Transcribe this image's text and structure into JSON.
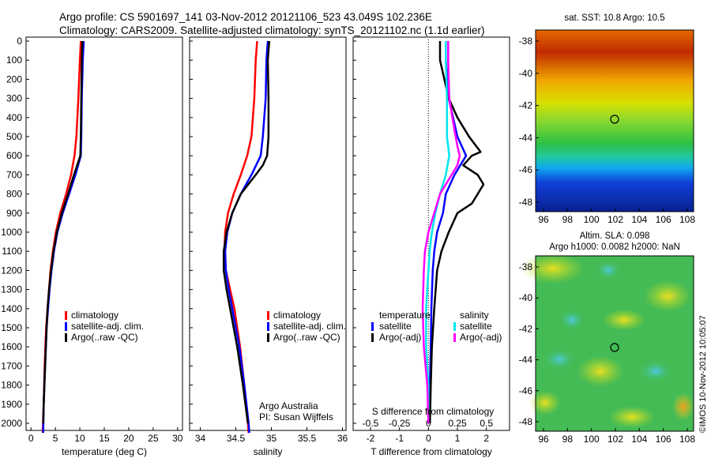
{
  "header": {
    "line1": "Argo profile: CS 5901697_141 03-Nov-2012 20121106_523 43.049S 102.236E",
    "line2": "Climatology: CARS2009. Satellite-adjusted climatology: synTS_20121102.nc (1.1d earlier)"
  },
  "depth_ticks": [
    "0",
    "100",
    "200",
    "300",
    "400",
    "500",
    "600",
    "700",
    "800",
    "900",
    "1000",
    "1100",
    "1200",
    "1300",
    "1400",
    "1500",
    "1600",
    "1700",
    "1800",
    "1900",
    "2000"
  ],
  "colors": {
    "climatology": "#ff0000",
    "satellite": "#0000ff",
    "argo": "#000000",
    "sat_salinity": "#00e5ee",
    "argo_adj_salinity": "#ff00ff"
  },
  "temp_panel": {
    "xlabel": "temperature (deg C)",
    "xticks": [
      "0",
      "5",
      "10",
      "15",
      "20",
      "25",
      "30"
    ],
    "legend": [
      "climatology",
      "satellite-adj. clim.",
      "Argo(..raw -QC)"
    ]
  },
  "sal_panel": {
    "xlabel": "salinity",
    "xticks": [
      "34",
      "34.5",
      "35",
      "35.5",
      "36"
    ],
    "legend": [
      "climatology",
      "satellite-adj. clim.",
      "Argo(..raw -QC)"
    ],
    "note1": "Argo Australia",
    "note2": "PI: Susan Wijffels"
  },
  "diff_panel": {
    "xlabel": "T difference from climatology",
    "top_label": "S difference from climatology",
    "xticks_bottom": [
      "-2",
      "-1",
      "0",
      "1",
      "2"
    ],
    "xticks_top": [
      "-0.5",
      "-0.25",
      "0",
      "0.25",
      "0.5"
    ],
    "legend_temperature_title": "temperature",
    "legend_salinity_title": "salinity",
    "legend_temperature": [
      "satellite",
      "Argo(-adj)"
    ],
    "legend_salinity": [
      "satellite",
      "Argo(-adj)"
    ]
  },
  "sst_map": {
    "title": "sat. SST: 10.8  Argo: 10.5",
    "yticks": [
      "-38",
      "-40",
      "-42",
      "-44",
      "-46",
      "-48"
    ],
    "xticks": [
      "96",
      "98",
      "100",
      "102",
      "104",
      "106",
      "108"
    ]
  },
  "sla_map": {
    "title1": "Altim. SLA: 0.098",
    "title2": "Argo h1000: 0.0082 h2000: NaN",
    "yticks": [
      "-38",
      "-40",
      "-42",
      "-44",
      "-46",
      "-48"
    ],
    "xticks": [
      "96",
      "98",
      "100",
      "102",
      "104",
      "106",
      "108"
    ]
  },
  "side_stamp": "©IMOS 10-Nov-2012 10:05:07",
  "chart_data": [
    {
      "type": "line",
      "xlabel": "temperature (deg C)",
      "ylabel": "",
      "xlim": [
        -1,
        31
      ],
      "ylim": [
        2050,
        0
      ],
      "series": [
        {
          "name": "climatology",
          "depth": [
            0,
            100,
            300,
            500,
            600,
            700,
            800,
            900,
            1000,
            1100,
            1200,
            1300,
            1400,
            1500,
            1700,
            1900,
            2050
          ],
          "values": [
            10.2,
            10.0,
            9.7,
            9.3,
            8.9,
            8.2,
            7.2,
            6.0,
            5.1,
            4.5,
            4.0,
            3.7,
            3.4,
            3.1,
            2.8,
            2.6,
            2.4
          ]
        },
        {
          "name": "satellite-adj. clim.",
          "depth": [
            0,
            100,
            300,
            500,
            600,
            700,
            800,
            900,
            1000,
            1100,
            1200,
            1300,
            1400,
            1500,
            1700,
            1900,
            2050
          ],
          "values": [
            10.8,
            10.6,
            10.4,
            10.3,
            10.2,
            9.1,
            7.8,
            6.5,
            5.4,
            4.7,
            4.2,
            3.8,
            3.5,
            3.2,
            2.9,
            2.6,
            2.5
          ]
        },
        {
          "name": "Argo(..raw -QC)",
          "depth": [
            0,
            100,
            300,
            500,
            600,
            700,
            800,
            900,
            1000,
            1100,
            1200,
            1300,
            1400,
            1500,
            1700,
            1900,
            2000
          ],
          "values": [
            10.5,
            10.4,
            10.3,
            10.2,
            10.1,
            8.8,
            7.6,
            6.3,
            5.3,
            4.6,
            4.1,
            3.7,
            3.4,
            3.2,
            2.9,
            2.6,
            2.5
          ]
        }
      ]
    },
    {
      "type": "line",
      "xlabel": "salinity",
      "ylabel": "",
      "xlim": [
        33.85,
        36.05
      ],
      "ylim": [
        2050,
        0
      ],
      "series": [
        {
          "name": "climatology",
          "depth": [
            0,
            100,
            300,
            500,
            600,
            700,
            800,
            900,
            1000,
            1100,
            1200,
            1300,
            1400,
            1500,
            1600,
            1800,
            2000,
            2050
          ],
          "values": [
            34.8,
            34.78,
            34.76,
            34.72,
            34.66,
            34.57,
            34.47,
            34.39,
            34.35,
            34.34,
            34.36,
            34.42,
            34.48,
            34.52,
            34.56,
            34.62,
            34.67,
            34.68
          ]
        },
        {
          "name": "satellite-adj. clim.",
          "depth": [
            0,
            100,
            300,
            500,
            600,
            700,
            800,
            900,
            1000,
            1100,
            1200,
            1300,
            1400,
            1500,
            1600,
            1800,
            2000,
            2050
          ],
          "values": [
            34.95,
            34.93,
            34.92,
            34.88,
            34.85,
            34.72,
            34.57,
            34.45,
            34.38,
            34.35,
            34.36,
            34.4,
            34.45,
            34.5,
            34.55,
            34.62,
            34.68,
            34.69
          ]
        },
        {
          "name": "Argo(..raw -QC)",
          "depth": [
            0,
            100,
            300,
            500,
            600,
            650,
            700,
            800,
            900,
            1000,
            1100,
            1200,
            1300,
            1400,
            1500,
            1600,
            1800,
            2000
          ],
          "values": [
            34.97,
            34.95,
            34.96,
            34.96,
            34.94,
            34.88,
            34.78,
            34.57,
            34.45,
            34.37,
            34.33,
            34.33,
            34.37,
            34.42,
            34.47,
            34.52,
            34.6,
            34.67
          ]
        }
      ]
    },
    {
      "type": "line",
      "xlabel": "T difference from climatology",
      "ylabel": "",
      "xlim": [
        -2.6,
        2.8
      ],
      "ylim": [
        2050,
        0
      ],
      "series": [
        {
          "name": "temperature satellite",
          "depth": [
            0,
            100,
            300,
            500,
            600,
            700,
            800,
            900,
            1000,
            1100,
            1200,
            1400,
            1600,
            1800,
            2000
          ],
          "values": [
            0.6,
            0.6,
            0.7,
            1.0,
            1.3,
            0.9,
            0.6,
            0.5,
            0.3,
            0.2,
            0.15,
            0.1,
            0.08,
            0.05,
            0.05
          ]
        },
        {
          "name": "temperature Argo(-adj)",
          "depth": [
            0,
            100,
            300,
            400,
            500,
            560,
            580,
            600,
            650,
            700,
            750,
            800,
            850,
            900,
            1000,
            1100,
            1200,
            1400,
            1600,
            1800,
            2000
          ],
          "values": [
            0.4,
            0.4,
            0.7,
            1.0,
            1.4,
            1.7,
            1.8,
            1.5,
            1.2,
            1.7,
            1.9,
            1.7,
            1.5,
            1.0,
            0.7,
            0.45,
            0.3,
            0.2,
            0.12,
            0.08,
            0.05
          ]
        },
        {
          "name": "salinity satellite",
          "depth": [
            0,
            100,
            300,
            500,
            600,
            700,
            800,
            900,
            1000,
            1100,
            1200,
            1400,
            1600,
            1800,
            2000
          ],
          "values": [
            0.15,
            0.15,
            0.16,
            0.16,
            0.18,
            0.15,
            0.1,
            0.06,
            0.03,
            0.01,
            0.0,
            -0.02,
            -0.02,
            0.0,
            0.0
          ]
        },
        {
          "name": "salinity Argo(-adj)",
          "depth": [
            0,
            100,
            300,
            450,
            550,
            600,
            650,
            700,
            800,
            900,
            1000,
            1100,
            1200,
            1400,
            1600,
            1800,
            2000
          ],
          "values": [
            0.17,
            0.17,
            0.18,
            0.22,
            0.25,
            0.27,
            0.25,
            0.2,
            0.1,
            0.05,
            0.0,
            -0.03,
            -0.04,
            -0.05,
            -0.04,
            -0.01,
            0.0
          ]
        }
      ]
    }
  ]
}
